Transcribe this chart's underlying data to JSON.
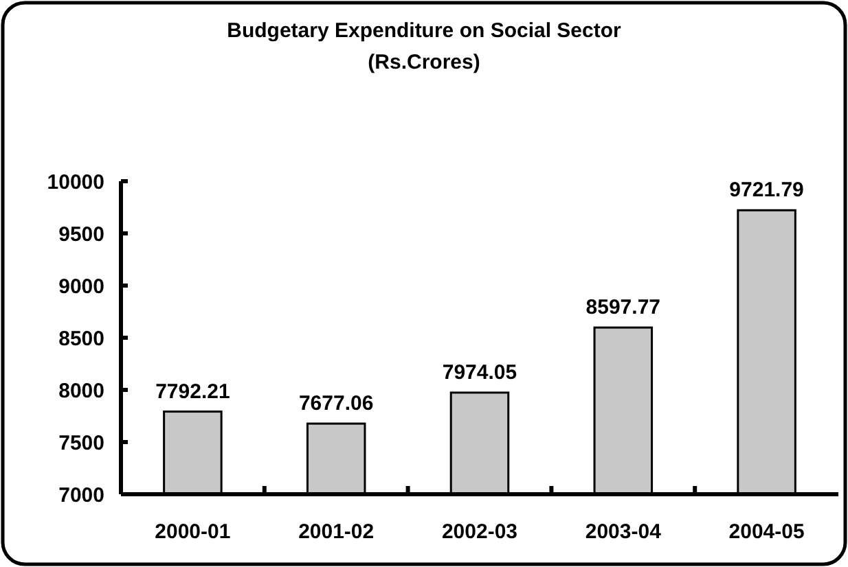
{
  "chart_data": {
    "type": "bar",
    "title": "Budgetary Expenditure on Social Sector",
    "subtitle": "(Rs.Crores)",
    "categories": [
      "2000-01",
      "2001-02",
      "2002-03",
      "2003-04",
      "2004-05"
    ],
    "values": [
      7792.21,
      7677.06,
      7974.05,
      8597.77,
      9721.79
    ],
    "color": "#c8c8c8",
    "ylim": [
      7000,
      10000
    ],
    "yticks": [
      7000,
      7500,
      8000,
      8500,
      9000,
      9500,
      10000
    ],
    "data_labels": true
  }
}
